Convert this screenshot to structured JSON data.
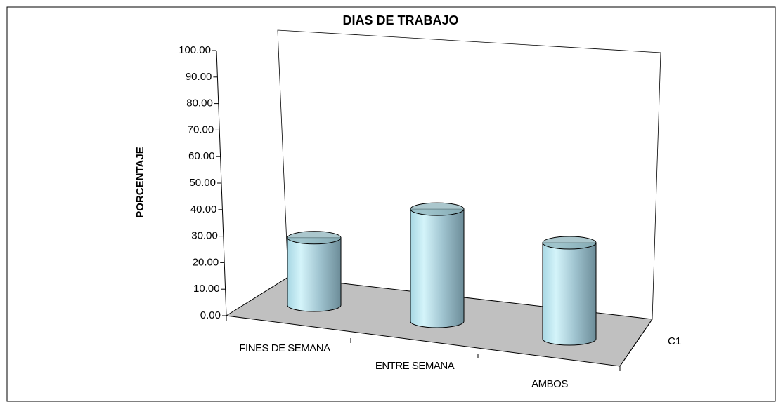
{
  "chart_data": {
    "type": "cylinder3d",
    "title": "DIAS DE TRABAJO",
    "y_label": "PORCENTAJE",
    "categories": [
      "FINES DE SEMANA",
      "ENTRE SEMANA",
      "AMBOS"
    ],
    "series": [
      {
        "name": "C1",
        "color": "#b8e4ee",
        "values": [
          26,
          41,
          33
        ]
      }
    ],
    "ylim": [
      0,
      100
    ],
    "yticks": [
      {
        "value": 0,
        "label": "0.00"
      },
      {
        "value": 10,
        "label": "10.00"
      },
      {
        "value": 20,
        "label": "20.00"
      },
      {
        "value": 30,
        "label": "30.00"
      },
      {
        "value": 40,
        "label": "40.00"
      },
      {
        "value": 50,
        "label": "50.00"
      },
      {
        "value": 60,
        "label": "60.00"
      },
      {
        "value": 70,
        "label": "70.00"
      },
      {
        "value": 80,
        "label": "80.00"
      },
      {
        "value": 90,
        "label": "90.00"
      },
      {
        "value": 100,
        "label": "100.00"
      }
    ]
  }
}
